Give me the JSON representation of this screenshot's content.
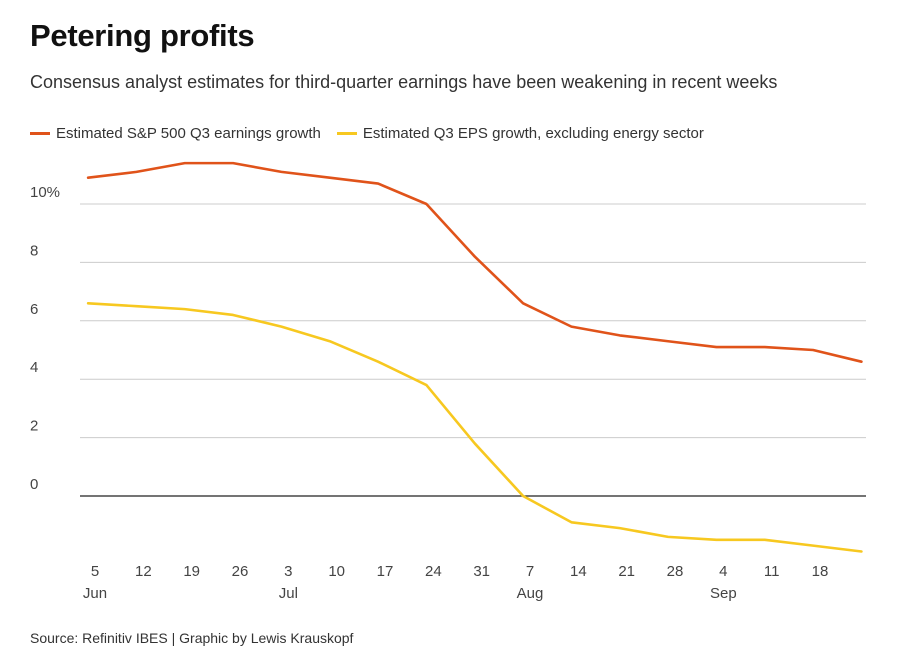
{
  "header": {
    "title": "Petering profits",
    "subtitle": "Consensus analyst estimates for third-quarter earnings have been weakening in recent weeks"
  },
  "footer": {
    "source": "Source: Refinitiv IBES | Graphic by Lewis Krauskopf"
  },
  "colors": {
    "series_sp500": "#e0531a",
    "series_ex_energy": "#f7c820",
    "grid": "#cccccc",
    "zero_line": "#222222"
  },
  "chart_data": {
    "type": "line",
    "title": "Petering profits",
    "subtitle": "Consensus analyst estimates for third-quarter earnings have been weakening in recent weeks",
    "xlabel": "",
    "ylabel": "",
    "ylim": [
      -2,
      11.5
    ],
    "grid": true,
    "legend_placement": "top-left",
    "y_ticks": [
      {
        "value": 0,
        "label": "0"
      },
      {
        "value": 2,
        "label": "2"
      },
      {
        "value": 4,
        "label": "4"
      },
      {
        "value": 6,
        "label": "6"
      },
      {
        "value": 8,
        "label": "8"
      },
      {
        "value": 10,
        "label": "10%"
      }
    ],
    "x_ticks": [
      {
        "date": "2022-06-05",
        "day": "5",
        "month": "Jun"
      },
      {
        "date": "2022-06-12",
        "day": "12",
        "month": ""
      },
      {
        "date": "2022-06-19",
        "day": "19",
        "month": ""
      },
      {
        "date": "2022-06-26",
        "day": "26",
        "month": ""
      },
      {
        "date": "2022-07-03",
        "day": "3",
        "month": "Jul"
      },
      {
        "date": "2022-07-10",
        "day": "10",
        "month": ""
      },
      {
        "date": "2022-07-17",
        "day": "17",
        "month": ""
      },
      {
        "date": "2022-07-24",
        "day": "24",
        "month": ""
      },
      {
        "date": "2022-07-31",
        "day": "31",
        "month": ""
      },
      {
        "date": "2022-08-07",
        "day": "7",
        "month": "Aug"
      },
      {
        "date": "2022-08-14",
        "day": "14",
        "month": ""
      },
      {
        "date": "2022-08-21",
        "day": "21",
        "month": ""
      },
      {
        "date": "2022-08-28",
        "day": "28",
        "month": ""
      },
      {
        "date": "2022-09-04",
        "day": "4",
        "month": "Sep"
      },
      {
        "date": "2022-09-11",
        "day": "11",
        "month": ""
      },
      {
        "date": "2022-09-18",
        "day": "18",
        "month": ""
      }
    ],
    "series": [
      {
        "name": "Estimated S&P 500 Q3 earnings growth",
        "color": "#e0531a",
        "points": [
          {
            "date": "2022-06-04",
            "value": 10.9
          },
          {
            "date": "2022-06-11",
            "value": 11.1
          },
          {
            "date": "2022-06-18",
            "value": 11.4
          },
          {
            "date": "2022-06-25",
            "value": 11.4
          },
          {
            "date": "2022-07-02",
            "value": 11.1
          },
          {
            "date": "2022-07-09",
            "value": 10.9
          },
          {
            "date": "2022-07-16",
            "value": 10.7
          },
          {
            "date": "2022-07-23",
            "value": 10.0
          },
          {
            "date": "2022-07-30",
            "value": 8.2
          },
          {
            "date": "2022-08-06",
            "value": 6.6
          },
          {
            "date": "2022-08-13",
            "value": 5.8
          },
          {
            "date": "2022-08-20",
            "value": 5.5
          },
          {
            "date": "2022-08-27",
            "value": 5.3
          },
          {
            "date": "2022-09-03",
            "value": 5.1
          },
          {
            "date": "2022-09-10",
            "value": 5.1
          },
          {
            "date": "2022-09-17",
            "value": 5.0
          },
          {
            "date": "2022-09-24",
            "value": 4.6
          }
        ]
      },
      {
        "name": "Estimated Q3 EPS growth, excluding energy sector",
        "color": "#f7c820",
        "points": [
          {
            "date": "2022-06-04",
            "value": 6.6
          },
          {
            "date": "2022-06-11",
            "value": 6.5
          },
          {
            "date": "2022-06-18",
            "value": 6.4
          },
          {
            "date": "2022-06-25",
            "value": 6.2
          },
          {
            "date": "2022-07-02",
            "value": 5.8
          },
          {
            "date": "2022-07-09",
            "value": 5.3
          },
          {
            "date": "2022-07-16",
            "value": 4.6
          },
          {
            "date": "2022-07-23",
            "value": 3.8
          },
          {
            "date": "2022-07-30",
            "value": 1.8
          },
          {
            "date": "2022-08-06",
            "value": 0.0
          },
          {
            "date": "2022-08-13",
            "value": -0.9
          },
          {
            "date": "2022-08-20",
            "value": -1.1
          },
          {
            "date": "2022-08-27",
            "value": -1.4
          },
          {
            "date": "2022-09-03",
            "value": -1.5
          },
          {
            "date": "2022-09-10",
            "value": -1.5
          },
          {
            "date": "2022-09-17",
            "value": -1.7
          },
          {
            "date": "2022-09-24",
            "value": -1.9
          }
        ]
      }
    ]
  }
}
